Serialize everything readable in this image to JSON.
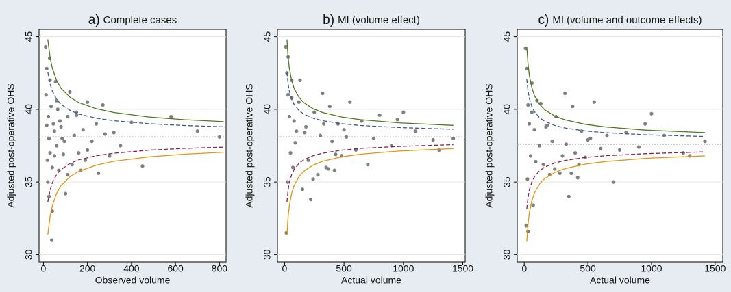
{
  "chart_data": [
    {
      "type": "scatter",
      "panel_label": "a)",
      "title": "Complete cases",
      "x_label": "Observed volume",
      "y_label": "Adjusted post-operative OHS",
      "xlim": [
        -20,
        830
      ],
      "ylim": [
        29.5,
        45.5
      ],
      "xticks": [
        0,
        200,
        400,
        600,
        800
      ],
      "yticks": [
        30,
        35,
        40,
        45
      ],
      "grid": true,
      "reference_line": 38.1,
      "points": {
        "color": "#7f7f7f",
        "x": [
          10,
          12,
          15,
          18,
          20,
          22,
          25,
          28,
          30,
          35,
          38,
          40,
          45,
          50,
          55,
          60,
          65,
          70,
          75,
          80,
          90,
          95,
          100,
          110,
          120,
          130,
          140,
          150,
          160,
          170,
          180,
          190,
          200,
          220,
          240,
          250,
          270,
          280,
          300,
          320,
          350,
          400,
          450,
          580,
          700,
          800,
          15,
          25,
          40,
          60,
          85,
          110,
          150,
          200,
          30,
          50
        ],
        "y": [
          44.3,
          41,
          42.8,
          36.5,
          35,
          39.5,
          38,
          43.5,
          37,
          40.2,
          31,
          36,
          39,
          38.5,
          41.9,
          37.5,
          40,
          35.8,
          39.2,
          38.8,
          36.9,
          37.8,
          34.2,
          39.5,
          41.2,
          36.2,
          38.2,
          39.8,
          37,
          35.8,
          38.6,
          36.5,
          40.5,
          37.8,
          39,
          35.6,
          40.3,
          38.3,
          36.8,
          38.4,
          37.5,
          39.1,
          36.1,
          39.5,
          38.5,
          38.1,
          38.9,
          34,
          33,
          40.6,
          38,
          35.5,
          39.6,
          37.2,
          42,
          36.8
        ]
      },
      "limits": [
        {
          "color": "#4d7a1f",
          "dashed": false,
          "x": [
            20,
            30,
            40,
            60,
            80,
            120,
            160,
            240,
            320,
            480,
            640,
            820
          ],
          "y": [
            44.81,
            43.58,
            42.84,
            41.97,
            41.45,
            40.84,
            40.47,
            40.04,
            39.78,
            39.47,
            39.29,
            39.15
          ]
        },
        {
          "color": "#3a5a8c",
          "dashed": true,
          "x": [
            20,
            30,
            40,
            60,
            80,
            120,
            160,
            240,
            320,
            480,
            640,
            820
          ],
          "y": [
            42.57,
            41.75,
            41.26,
            40.68,
            40.34,
            39.93,
            39.68,
            39.39,
            39.22,
            39.01,
            38.89,
            38.8
          ]
        },
        {
          "color": "#8b2040",
          "dashed": true,
          "x": [
            20,
            30,
            40,
            60,
            80,
            120,
            160,
            240,
            320,
            480,
            640,
            820
          ],
          "y": [
            33.63,
            34.45,
            34.94,
            35.52,
            35.86,
            36.27,
            36.52,
            36.81,
            36.98,
            37.19,
            37.31,
            37.4
          ]
        },
        {
          "color": "#e8930c",
          "dashed": false,
          "x": [
            20,
            30,
            40,
            60,
            80,
            120,
            160,
            240,
            320,
            480,
            640,
            820
          ],
          "y": [
            31.39,
            32.62,
            33.36,
            34.23,
            34.75,
            35.36,
            35.73,
            36.16,
            36.42,
            36.73,
            36.91,
            37.05
          ]
        }
      ]
    },
    {
      "type": "scatter",
      "panel_label": "b)",
      "title": "MI (volume effect)",
      "x_label": "Actual volume",
      "y_label": "Adjusted post-operative OHS",
      "xlim": [
        -60,
        1520
      ],
      "ylim": [
        29.5,
        45.5
      ],
      "xticks": [
        0,
        500,
        1000,
        1500
      ],
      "yticks": [
        30,
        35,
        40,
        45
      ],
      "grid": true,
      "reference_line": 38.1,
      "points": {
        "color": "#7f7f7f",
        "x": [
          10,
          15,
          20,
          25,
          30,
          40,
          50,
          60,
          70,
          80,
          100,
          120,
          150,
          180,
          200,
          220,
          250,
          280,
          300,
          320,
          350,
          380,
          400,
          420,
          450,
          480,
          500,
          550,
          600,
          650,
          700,
          750,
          800,
          900,
          950,
          1000,
          1100,
          1250,
          1300,
          1420,
          30,
          60,
          90,
          130,
          170,
          240,
          330,
          370,
          430,
          520
        ],
        "y": [
          44.3,
          31.5,
          42.5,
          35,
          41,
          39.5,
          37,
          42,
          36,
          39.2,
          38.5,
          40.5,
          34.5,
          38.8,
          36.5,
          33.8,
          39.8,
          35.5,
          38.2,
          41.1,
          36,
          40.2,
          37.8,
          35.8,
          39,
          36.8,
          38.6,
          40.5,
          37.2,
          39.2,
          36.2,
          38,
          39.6,
          37.5,
          39.3,
          39.8,
          38.5,
          37.9,
          37.2,
          38,
          43.6,
          40.8,
          37.7,
          42,
          38.4,
          35.2,
          39,
          35.9,
          36.9,
          38.1
        ]
      },
      "limits": [
        {
          "color": "#4d7a1f",
          "dashed": false,
          "x": [
            20,
            30,
            40,
            60,
            80,
            120,
            160,
            240,
            320,
            480,
            640,
            960,
            1420
          ],
          "y": [
            44.81,
            43.58,
            42.84,
            41.97,
            41.45,
            40.84,
            40.47,
            40.04,
            39.78,
            39.47,
            39.29,
            39.07,
            38.9
          ]
        },
        {
          "color": "#3a5a8c",
          "dashed": true,
          "x": [
            20,
            30,
            40,
            60,
            80,
            120,
            160,
            240,
            320,
            480,
            640,
            960,
            1420
          ],
          "y": [
            42.57,
            41.75,
            41.26,
            40.68,
            40.34,
            39.93,
            39.68,
            39.39,
            39.22,
            39.01,
            38.89,
            38.75,
            38.63
          ]
        },
        {
          "color": "#8b2040",
          "dashed": true,
          "x": [
            20,
            30,
            40,
            60,
            80,
            120,
            160,
            240,
            320,
            480,
            640,
            960,
            1420
          ],
          "y": [
            33.63,
            34.45,
            34.94,
            35.52,
            35.86,
            36.27,
            36.52,
            36.81,
            36.98,
            37.19,
            37.31,
            37.45,
            37.57
          ]
        },
        {
          "color": "#e8930c",
          "dashed": false,
          "x": [
            20,
            30,
            40,
            60,
            80,
            120,
            160,
            240,
            320,
            480,
            640,
            960,
            1420
          ],
          "y": [
            31.39,
            32.62,
            33.36,
            34.23,
            34.75,
            35.36,
            35.73,
            36.16,
            36.42,
            36.73,
            36.91,
            37.13,
            37.3
          ]
        }
      ]
    },
    {
      "type": "scatter",
      "panel_label": "c)",
      "title": "MI (volume and outcome effects)",
      "x_label": "Actual volume",
      "y_label": "Adjusted post-operative OHS",
      "xlim": [
        -55,
        1560
      ],
      "ylim": [
        29.5,
        45.5
      ],
      "xticks": [
        0,
        500,
        1000,
        1500
      ],
      "yticks": [
        30,
        35,
        40,
        45
      ],
      "grid": true,
      "reference_line": 37.6,
      "points": {
        "color": "#7f7f7f",
        "x": [
          10,
          15,
          20,
          25,
          30,
          40,
          50,
          60,
          70,
          80,
          100,
          120,
          150,
          180,
          200,
          220,
          250,
          280,
          300,
          320,
          350,
          380,
          400,
          420,
          450,
          480,
          500,
          550,
          600,
          650,
          700,
          750,
          800,
          900,
          950,
          1000,
          1100,
          1250,
          1300,
          1420,
          30,
          60,
          90,
          130,
          170,
          240,
          330,
          370,
          430,
          520
        ],
        "y": [
          44.2,
          32,
          42.8,
          35.2,
          40.3,
          39,
          36.8,
          41.8,
          33.4,
          38.6,
          40.6,
          37.5,
          36.2,
          38.9,
          35.5,
          37.8,
          39.5,
          35.6,
          36.8,
          41.1,
          34,
          40.2,
          37,
          35.3,
          38.5,
          36.7,
          37.9,
          40.5,
          37.3,
          38.2,
          35,
          37.2,
          38.4,
          37.4,
          39,
          39.7,
          38.2,
          37,
          36.8,
          37.8,
          31.6,
          39.8,
          36.4,
          40.4,
          38.8,
          35.9,
          37.6,
          35.6,
          36.2,
          38
        ]
      },
      "limits": [
        {
          "color": "#4d7a1f",
          "dashed": false,
          "x": [
            20,
            30,
            40,
            60,
            80,
            120,
            160,
            240,
            320,
            480,
            640,
            960,
            1420
          ],
          "y": [
            44.31,
            43.08,
            42.34,
            41.47,
            40.95,
            40.34,
            39.97,
            39.54,
            39.28,
            38.97,
            38.79,
            38.57,
            38.4
          ]
        },
        {
          "color": "#3a5a8c",
          "dashed": true,
          "x": [
            20,
            30,
            40,
            60,
            80,
            120,
            160,
            240,
            320,
            480,
            640,
            960,
            1420
          ],
          "y": [
            42.07,
            41.25,
            40.76,
            40.18,
            39.84,
            39.43,
            39.18,
            38.89,
            38.72,
            38.51,
            38.39,
            38.25,
            38.13
          ]
        },
        {
          "color": "#8b2040",
          "dashed": true,
          "x": [
            20,
            30,
            40,
            60,
            80,
            120,
            160,
            240,
            320,
            480,
            640,
            960,
            1420
          ],
          "y": [
            33.13,
            33.95,
            34.44,
            35.02,
            35.36,
            35.77,
            36.02,
            36.31,
            36.48,
            36.69,
            36.81,
            36.95,
            37.07
          ]
        },
        {
          "color": "#e8930c",
          "dashed": false,
          "x": [
            20,
            30,
            40,
            60,
            80,
            120,
            160,
            240,
            320,
            480,
            640,
            960,
            1420
          ],
          "y": [
            30.89,
            32.12,
            32.86,
            33.73,
            34.25,
            34.86,
            35.23,
            35.66,
            35.92,
            36.23,
            36.41,
            36.63,
            36.8
          ]
        }
      ]
    }
  ]
}
